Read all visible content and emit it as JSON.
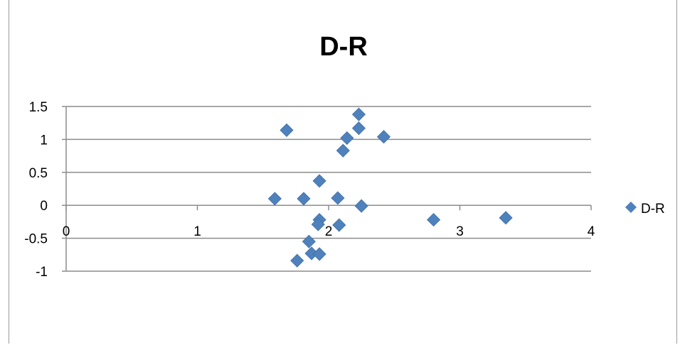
{
  "chart_data": {
    "type": "scatter",
    "title": "D-R",
    "xlim": [
      0,
      4
    ],
    "ylim": [
      -1,
      1.5
    ],
    "x_ticks": [
      "0",
      "1",
      "2",
      "3",
      "4"
    ],
    "y_ticks": [
      "1.5",
      "1",
      "0.5",
      "0",
      "-0.5",
      "-1"
    ],
    "grid": "horizontal",
    "legend_position": "right",
    "marker_color": "#4f81bd",
    "series": [
      {
        "name": "D-R",
        "points": [
          {
            "x": 1.68,
            "y": 1.14
          },
          {
            "x": 2.23,
            "y": 1.38
          },
          {
            "x": 2.23,
            "y": 1.17
          },
          {
            "x": 2.14,
            "y": 1.02
          },
          {
            "x": 2.42,
            "y": 1.04
          },
          {
            "x": 2.11,
            "y": 0.83
          },
          {
            "x": 1.93,
            "y": 0.37
          },
          {
            "x": 1.59,
            "y": 0.1
          },
          {
            "x": 1.81,
            "y": 0.1
          },
          {
            "x": 2.07,
            "y": 0.11
          },
          {
            "x": 2.25,
            "y": -0.01
          },
          {
            "x": 1.93,
            "y": -0.22
          },
          {
            "x": 1.92,
            "y": -0.29
          },
          {
            "x": 2.08,
            "y": -0.3
          },
          {
            "x": 2.8,
            "y": -0.22
          },
          {
            "x": 3.35,
            "y": -0.19
          },
          {
            "x": 1.85,
            "y": -0.55
          },
          {
            "x": 1.87,
            "y": -0.73
          },
          {
            "x": 1.93,
            "y": -0.74
          },
          {
            "x": 1.76,
            "y": -0.84
          }
        ]
      }
    ]
  }
}
